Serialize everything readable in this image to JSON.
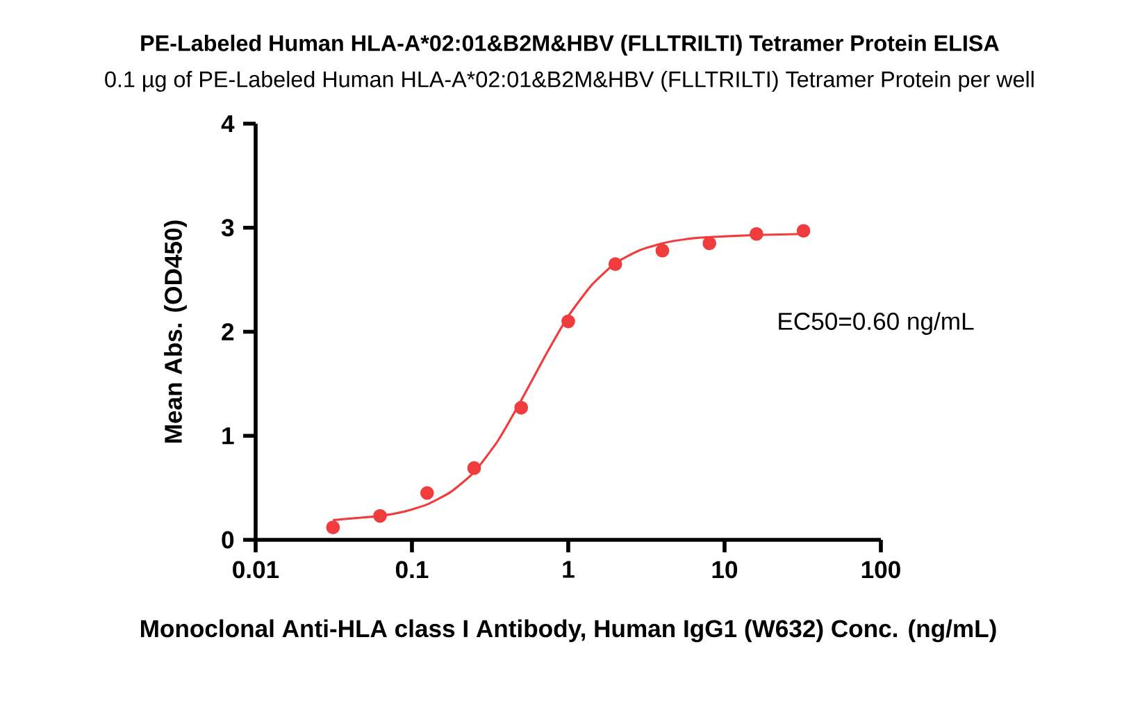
{
  "chart_data": {
    "type": "scatter",
    "title": "PE-Labeled Human HLA-A*02:01&B2M&HBV (FLLTRILTI) Tetramer Protein ELISA",
    "subtitle": "0.1 µg of PE-Labeled Human HLA-A*02:01&B2M&HBV (FLLTRILTI) Tetramer Protein per well",
    "xlabel": "Monoclonal Anti-HLA class I Antibody, Human IgG1 (W632) Conc. (ng/mL)",
    "ylabel": "Mean Abs. (OD450)",
    "annotations": [
      "EC50=0.60 ng/mL"
    ],
    "log": "x",
    "marker": "circle",
    "xlim": [
      0.01,
      100
    ],
    "xticks": [
      0.01,
      0.1,
      1,
      10,
      100
    ],
    "ylim": [
      0,
      4
    ],
    "yticks": [
      0,
      1,
      2,
      3,
      4
    ],
    "series": [
      {
        "color": "#f03c3c",
        "x": [
          0.03125,
          0.0625,
          0.125,
          0.25,
          0.5,
          1,
          2,
          4,
          8,
          16,
          32
        ],
        "values": [
          0.12,
          0.23,
          0.45,
          0.69,
          1.27,
          2.1,
          2.65,
          2.78,
          2.85,
          2.94,
          2.97
        ]
      },
      {
        "type": "line",
        "marker": "none",
        "line_style": "solid",
        "color": "#f03c3c",
        "x": [
          0.03125,
          0.0442,
          0.0625,
          0.0884,
          0.125,
          0.177,
          0.25,
          0.354,
          0.5,
          0.707,
          1,
          1.414,
          2,
          2.83,
          4,
          5.66,
          8,
          16,
          32
        ],
        "values": [
          0.19,
          0.21,
          0.23,
          0.27,
          0.34,
          0.46,
          0.65,
          0.95,
          1.34,
          1.76,
          2.15,
          2.45,
          2.66,
          2.78,
          2.85,
          2.89,
          2.91,
          2.93,
          2.94
        ]
      }
    ]
  }
}
